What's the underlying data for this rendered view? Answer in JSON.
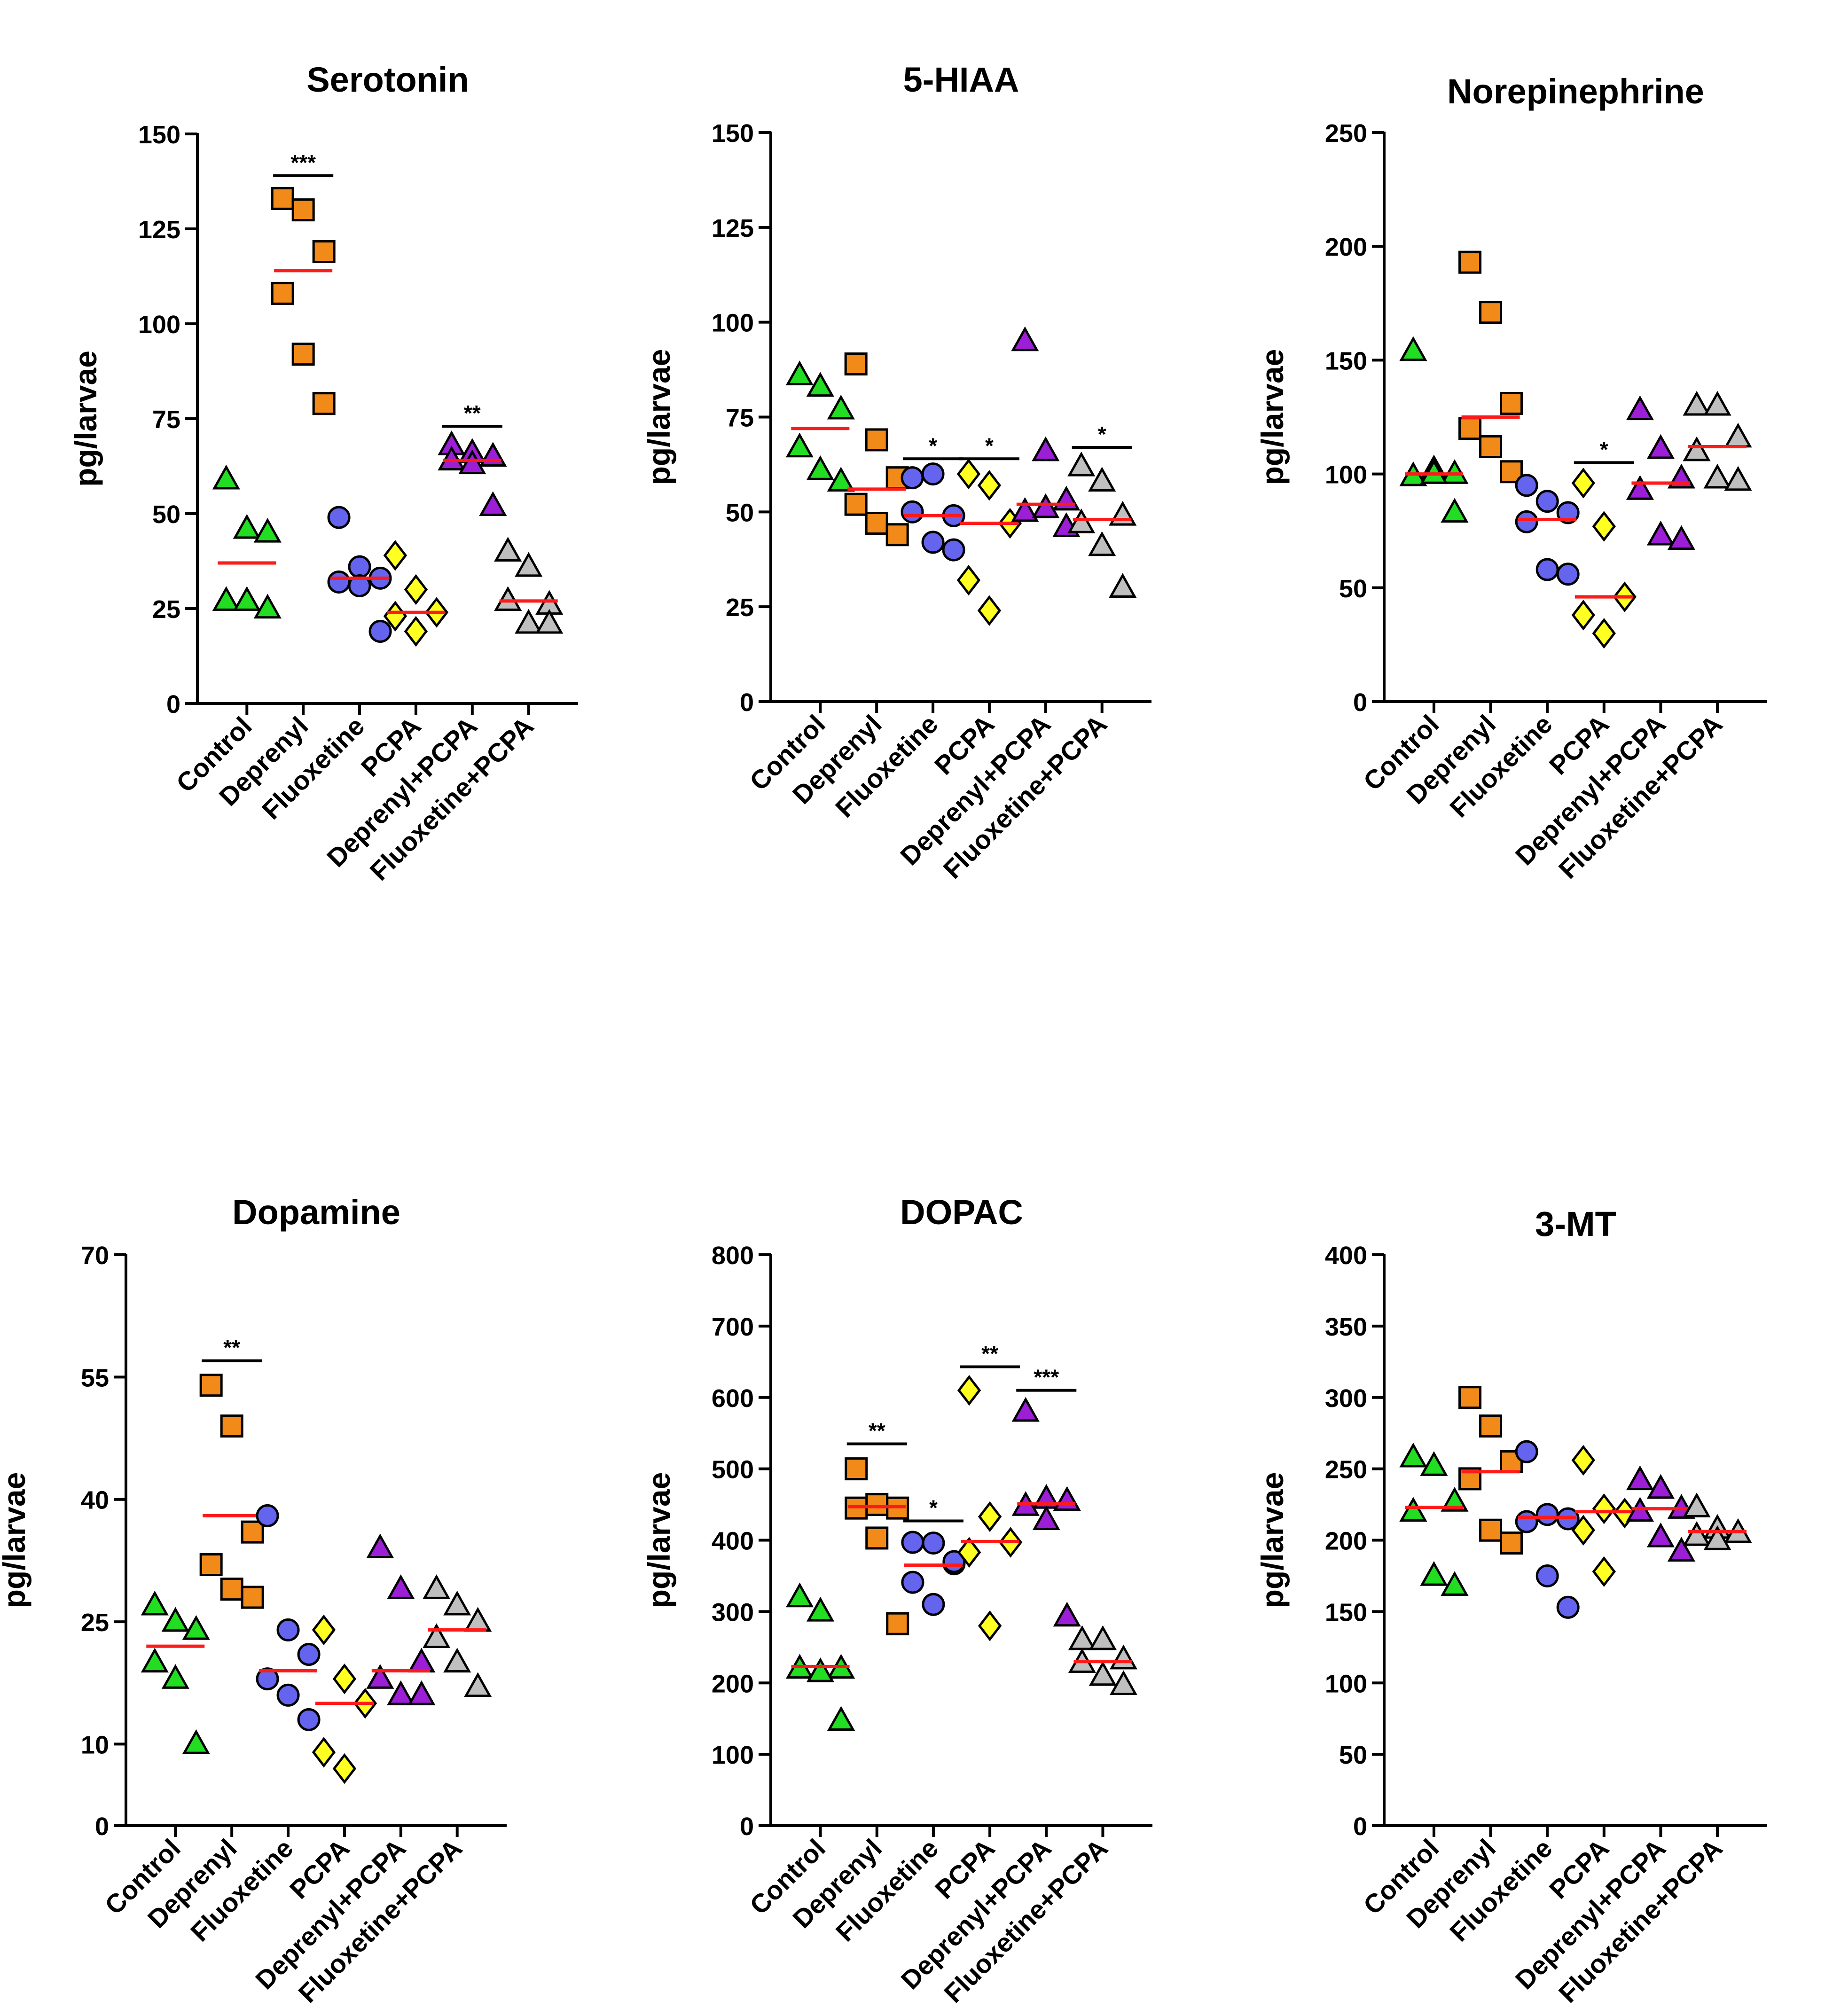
{
  "chart_data": [
    {
      "type": "scatter",
      "title": "Serotonin",
      "ylabel": "pg/larvae",
      "ylim": [
        0,
        150
      ],
      "yticks": [
        0,
        25,
        50,
        75,
        100,
        125,
        150
      ],
      "categories": [
        "Control",
        "Deprenyl",
        "Fluoxetine",
        "PCPA",
        "Deprenyl+PCPA",
        "Fluoxetine+PCPA"
      ],
      "groups": [
        {
          "name": "Control",
          "values": [
            59,
            46,
            45,
            27,
            27,
            25
          ],
          "mean": 37
        },
        {
          "name": "Deprenyl",
          "values": [
            133,
            130,
            119,
            108,
            92,
            79
          ],
          "mean": 114
        },
        {
          "name": "Fluoxetine",
          "values": [
            49,
            36,
            33,
            32,
            31,
            19
          ],
          "mean": 33
        },
        {
          "name": "PCPA",
          "values": [
            39,
            30,
            24,
            23,
            19
          ],
          "mean": 24
        },
        {
          "name": "Deprenyl+PCPA",
          "values": [
            68,
            66,
            65,
            64,
            63,
            52
          ],
          "mean": 64
        },
        {
          "name": "Fluoxetine+PCPA",
          "values": [
            40,
            36,
            26,
            27,
            21,
            21
          ],
          "mean": 27
        }
      ],
      "significance": [
        {
          "group": "Deprenyl",
          "label": "***",
          "y": 139
        },
        {
          "group": "Deprenyl+PCPA",
          "label": "**",
          "y": 73
        }
      ]
    },
    {
      "type": "scatter",
      "title": "5-HIAA",
      "ylabel": "pg/larvae",
      "ylim": [
        0,
        150
      ],
      "yticks": [
        0,
        25,
        50,
        75,
        100,
        125,
        150
      ],
      "categories": [
        "Control",
        "Deprenyl",
        "Fluoxetine",
        "PCPA",
        "Deprenyl+PCPA",
        "Fluoxetine+PCPA"
      ],
      "groups": [
        {
          "name": "Control",
          "values": [
            86,
            83,
            77,
            67,
            61,
            58
          ],
          "mean": 72
        },
        {
          "name": "Deprenyl",
          "values": [
            89,
            69,
            59,
            52,
            47,
            44
          ],
          "mean": 56
        },
        {
          "name": "Fluoxetine",
          "values": [
            59,
            60,
            49,
            50,
            42,
            40
          ],
          "mean": 49
        },
        {
          "name": "PCPA",
          "values": [
            60,
            57,
            47,
            32,
            24
          ],
          "mean": 47
        },
        {
          "name": "Deprenyl+PCPA",
          "values": [
            95,
            66,
            53,
            50,
            51,
            46
          ],
          "mean": 52
        },
        {
          "name": "Fluoxetine+PCPA",
          "values": [
            62,
            58,
            49,
            47,
            41,
            30
          ],
          "mean": 48
        }
      ],
      "significance": [
        {
          "group": "Fluoxetine",
          "label": "*",
          "y": 64
        },
        {
          "group": "PCPA",
          "label": "*",
          "y": 64
        },
        {
          "group": "Fluoxetine+PCPA",
          "label": "*",
          "y": 67
        }
      ]
    },
    {
      "type": "scatter",
      "title": "Norepinephrine",
      "ylabel": "pg/larvae",
      "ylim": [
        0,
        250
      ],
      "yticks": [
        0,
        50,
        100,
        150,
        200,
        250
      ],
      "categories": [
        "Control",
        "Deprenyl",
        "Fluoxetine",
        "PCPA",
        "Deprenyl+PCPA",
        "Fluoxetine+PCPA"
      ],
      "groups": [
        {
          "name": "Control",
          "values": [
            154,
            102,
            100,
            99,
            100,
            83
          ],
          "mean": 100
        },
        {
          "name": "Deprenyl",
          "values": [
            193,
            171,
            131,
            120,
            112,
            101
          ],
          "mean": 125
        },
        {
          "name": "Fluoxetine",
          "values": [
            95,
            88,
            83,
            79,
            58,
            56
          ],
          "mean": 80
        },
        {
          "name": "PCPA",
          "values": [
            96,
            77,
            46,
            38,
            30
          ],
          "mean": 46
        },
        {
          "name": "Deprenyl+PCPA",
          "values": [
            128,
            111,
            98,
            93,
            73,
            71
          ],
          "mean": 96
        },
        {
          "name": "Fluoxetine+PCPA",
          "values": [
            130,
            130,
            116,
            110,
            98,
            97
          ],
          "mean": 112
        }
      ],
      "significance": [
        {
          "group": "PCPA",
          "label": "*",
          "y": 105
        }
      ]
    },
    {
      "type": "scatter",
      "title": "Dopamine",
      "ylabel": "pg/larvae",
      "ylim": [
        0,
        70
      ],
      "yticks": [
        0,
        10,
        25,
        40,
        55,
        70
      ],
      "categories": [
        "Control",
        "Deprenyl",
        "Fluoxetine",
        "PCPA",
        "Deprenyl+PCPA",
        "Fluoxetine+PCPA"
      ],
      "groups": [
        {
          "name": "Control",
          "values": [
            27,
            25,
            24,
            20,
            18,
            10
          ],
          "mean": 22
        },
        {
          "name": "Deprenyl",
          "values": [
            54,
            49,
            36,
            32,
            29,
            28
          ],
          "mean": 38
        },
        {
          "name": "Fluoxetine",
          "values": [
            38,
            24,
            21,
            18,
            16,
            13
          ],
          "mean": 19
        },
        {
          "name": "PCPA",
          "values": [
            24,
            18,
            15,
            9,
            7
          ],
          "mean": 15
        },
        {
          "name": "Deprenyl+PCPA",
          "values": [
            34,
            29,
            20,
            18,
            16,
            16
          ],
          "mean": 19
        },
        {
          "name": "Fluoxetine+PCPA",
          "values": [
            29,
            27,
            25,
            23,
            20,
            17
          ],
          "mean": 24
        }
      ],
      "significance": [
        {
          "group": "Deprenyl",
          "label": "**",
          "y": 57
        }
      ]
    },
    {
      "type": "scatter",
      "title": "DOPAC",
      "ylabel": "pg/larvae",
      "ylim": [
        0,
        800
      ],
      "yticks": [
        0,
        100,
        200,
        300,
        400,
        500,
        600,
        700,
        800
      ],
      "categories": [
        "Control",
        "Deprenyl",
        "Fluoxetine",
        "PCPA",
        "Deprenyl+PCPA",
        "Fluoxetine+PCPA"
      ],
      "groups": [
        {
          "name": "Control",
          "values": [
            320,
            300,
            220,
            220,
            215,
            147
          ],
          "mean": 223
        },
        {
          "name": "Deprenyl",
          "values": [
            500,
            450,
            445,
            445,
            403,
            283
          ],
          "mean": 447
        },
        {
          "name": "Fluoxetine",
          "values": [
            397,
            396,
            367,
            341,
            310,
            370
          ],
          "mean": 365
        },
        {
          "name": "PCPA",
          "values": [
            610,
            433,
            397,
            383,
            280
          ],
          "mean": 398
        },
        {
          "name": "Deprenyl+PCPA",
          "values": [
            580,
            458,
            455,
            448,
            428,
            293
          ],
          "mean": 451
        },
        {
          "name": "Fluoxetine+PCPA",
          "values": [
            260,
            260,
            233,
            228,
            210,
            197
          ],
          "mean": 230
        }
      ],
      "significance": [
        {
          "group": "Deprenyl",
          "label": "**",
          "y": 535
        },
        {
          "group": "Fluoxetine",
          "label": "*",
          "y": 427
        },
        {
          "group": "PCPA",
          "label": "**",
          "y": 643
        },
        {
          "group": "Deprenyl+PCPA",
          "label": "***",
          "y": 610
        }
      ]
    },
    {
      "type": "scatter",
      "title": "3-MT",
      "ylabel": "pg/larvae",
      "ylim": [
        0,
        400
      ],
      "yticks": [
        0,
        50,
        100,
        150,
        200,
        250,
        300,
        350,
        400
      ],
      "categories": [
        "Control",
        "Deprenyl",
        "Fluoxetine",
        "PCPA",
        "Deprenyl+PCPA",
        "Fluoxetine+PCPA"
      ],
      "groups": [
        {
          "name": "Control",
          "values": [
            258,
            252,
            227,
            220,
            175,
            168
          ],
          "mean": 223
        },
        {
          "name": "Deprenyl",
          "values": [
            300,
            280,
            255,
            243,
            207,
            198
          ],
          "mean": 248
        },
        {
          "name": "Fluoxetine",
          "values": [
            262,
            218,
            215,
            213,
            175,
            153
          ],
          "mean": 216
        },
        {
          "name": "PCPA",
          "values": [
            256,
            222,
            219,
            207,
            178
          ],
          "mean": 220
        },
        {
          "name": "Deprenyl+PCPA",
          "values": [
            242,
            236,
            222,
            220,
            202,
            192
          ],
          "mean": 222
        },
        {
          "name": "Fluoxetine+PCPA",
          "values": [
            223,
            208,
            205,
            203,
            200
          ],
          "mean": 206
        }
      ],
      "significance": []
    }
  ],
  "styles": {
    "Control": {
      "marker": "triangle",
      "color": "#22dd22"
    },
    "Deprenyl": {
      "marker": "square",
      "color": "#f28a1a"
    },
    "Fluoxetine": {
      "marker": "circle",
      "color": "#6464ee"
    },
    "PCPA": {
      "marker": "diamond",
      "color": "#ffff22"
    },
    "Deprenyl+PCPA": {
      "marker": "triangle",
      "color": "#9c1ed6"
    },
    "Fluoxetine+PCPA": {
      "marker": "triangle",
      "color": "#bfbfbf"
    },
    "mean_line_color": "#ff1a1a"
  }
}
